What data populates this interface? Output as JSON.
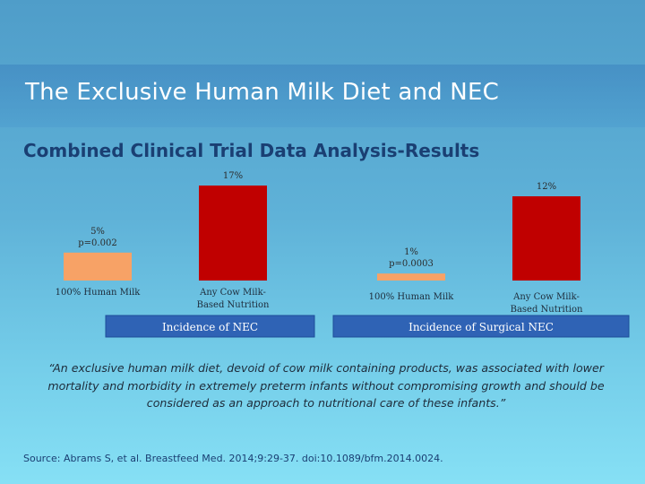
{
  "slide": {
    "title": "The Exclusive Human Milk Diet and NEC",
    "subtitle": "Combined Clinical Trial Data Analysis-Results",
    "quote": "“An exclusive human milk diet, devoid of cow milk containing products, was associated with lower mortality and morbidity in extremely preterm infants without compromising growth and should be considered as an approach to nutritional care of these infants.”",
    "source": "Source: Abrams S, et al. Breastfeed Med. 2014;9:29-37. doi:10.1089/bfm.2014.0024."
  },
  "colors": {
    "human_milk": "#f7a266",
    "cow_milk": "#c00000",
    "caption_box": "#2f63b5"
  },
  "chart_data": [
    {
      "type": "bar",
      "caption": "Incidence of NEC",
      "categories": [
        "100% Human Milk",
        "Any Cow Milk-Based Nutrition"
      ],
      "values": [
        5,
        17
      ],
      "unit": "%",
      "data_labels": [
        [
          "5%",
          "p=0.002"
        ],
        [
          "17%"
        ]
      ],
      "category_labels": [
        [
          "100% Human Milk"
        ],
        [
          "Any Cow Milk-",
          "Based Nutrition"
        ]
      ],
      "bar_colors": [
        "#f7a266",
        "#c00000"
      ],
      "ylim": [
        0,
        17
      ]
    },
    {
      "type": "bar",
      "caption": "Incidence of Surgical NEC",
      "categories": [
        "100% Human Milk",
        "Any Cow Milk-Based Nutrition"
      ],
      "values": [
        1,
        12
      ],
      "unit": "%",
      "data_labels": [
        [
          "1%",
          "p=0.0003"
        ],
        [
          "12%"
        ]
      ],
      "category_labels": [
        [
          "100% Human Milk"
        ],
        [
          "Any Cow Milk-",
          "Based Nutrition"
        ]
      ],
      "bar_colors": [
        "#f7a266",
        "#c00000"
      ],
      "ylim": [
        0,
        12
      ]
    }
  ]
}
